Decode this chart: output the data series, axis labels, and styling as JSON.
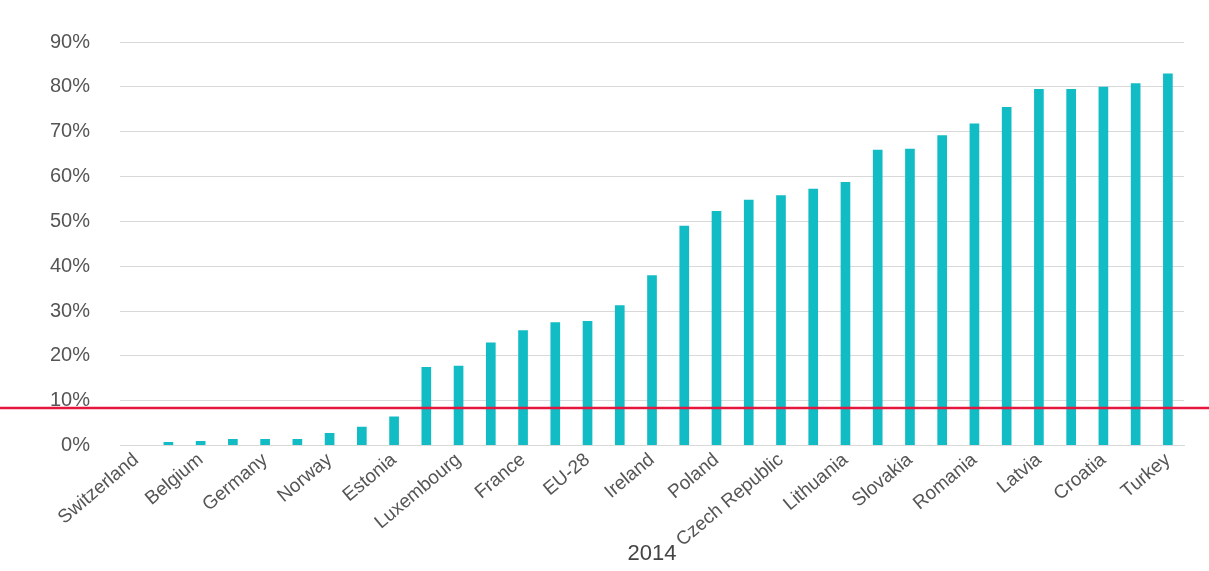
{
  "chart_data": {
    "type": "bar",
    "xlabel": "2014",
    "categories": [
      "Switzerland",
      null,
      "Belgium",
      null,
      "Germany",
      null,
      "Norway",
      null,
      "Estonia",
      null,
      "Luxembourg",
      null,
      "France",
      null,
      "EU-28",
      null,
      "Ireland",
      null,
      "Poland",
      null,
      "Czech Republic",
      null,
      "Lithuania",
      null,
      "Slovakia",
      null,
      "Romania",
      null,
      "Latvia",
      null,
      "Croatia",
      null,
      "Turkey"
    ],
    "values": [
      0,
      0.8,
      1,
      1.5,
      1.5,
      1.5,
      2.8,
      4.2,
      6.5,
      17.5,
      17.8,
      23,
      25.7,
      27.5,
      27.8,
      31.3,
      38,
      49,
      52.3,
      54.8,
      55.8,
      57.3,
      58.8,
      66,
      66.2,
      69.2,
      71.8,
      75.5,
      79.5,
      79.5,
      80,
      80.8,
      83
    ],
    "color": "#12bcc5",
    "ylim": [
      0,
      90
    ],
    "yticks": [
      {
        "value": 0,
        "label": "0%"
      },
      {
        "value": 10,
        "label": "10%"
      },
      {
        "value": 20,
        "label": "20%"
      },
      {
        "value": 30,
        "label": "30%"
      },
      {
        "value": 40,
        "label": "40%"
      },
      {
        "value": 50,
        "label": "50%"
      },
      {
        "value": 60,
        "label": "60%"
      },
      {
        "value": 70,
        "label": "70%"
      },
      {
        "value": 80,
        "label": "80%"
      },
      {
        "value": 90,
        "label": "90%"
      }
    ],
    "grid": "y",
    "ref_lines": [
      {
        "axis": "y",
        "value": 8.4,
        "color": "#e5173f"
      }
    ]
  }
}
